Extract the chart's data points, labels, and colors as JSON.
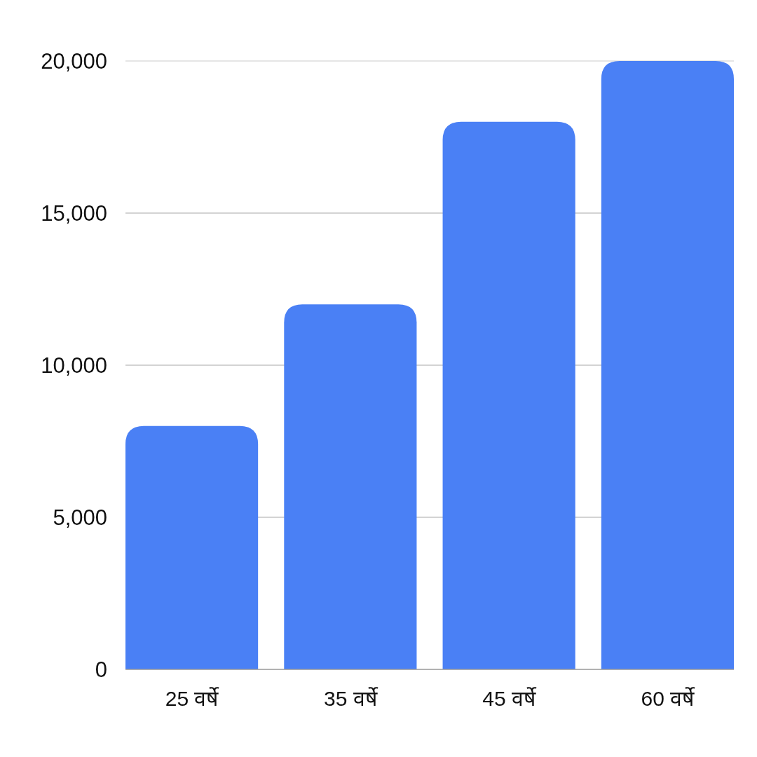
{
  "chart_data": {
    "type": "bar",
    "categories": [
      "25 वर्षे",
      "35 वर्षे",
      "45 वर्षे",
      "60 वर्षे"
    ],
    "values": [
      8000,
      12000,
      18000,
      20000
    ],
    "color": "#4a80f5",
    "ylim": [
      0,
      20000
    ],
    "yticks": [
      0,
      {
        "value": 5000,
        "label": "5,000"
      },
      {
        "value": 10000,
        "label": "10,000"
      },
      {
        "value": 15000,
        "label": "15,000"
      },
      {
        "value": 20000,
        "label": "20,000"
      }
    ],
    "grid": "y"
  }
}
